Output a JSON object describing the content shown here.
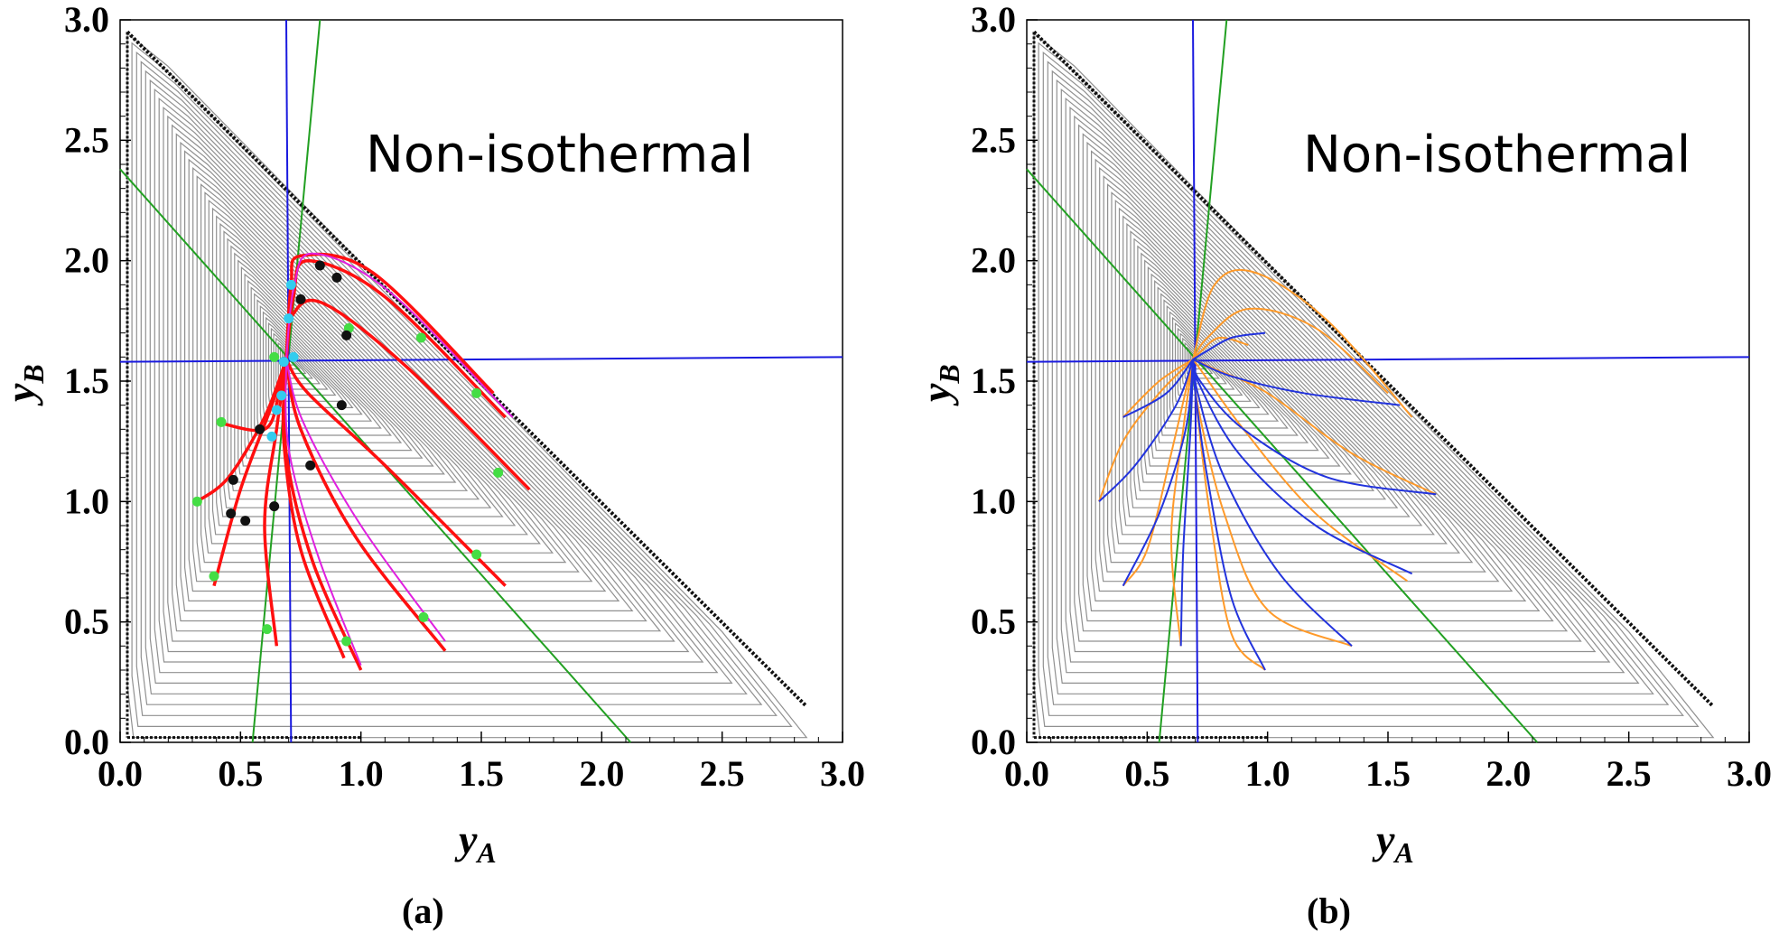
{
  "figure": {
    "panels": [
      "a",
      "b"
    ]
  },
  "chart_data": [
    {
      "type": "line",
      "panel_label": "(a)",
      "panel_label_parts": [
        "(",
        "a",
        ")"
      ],
      "annotation": "Non-isothermal",
      "xlabel": "y",
      "xlabel_sub": "A",
      "ylabel": "y",
      "ylabel_sub": "B",
      "xlim": [
        0,
        3
      ],
      "ylim": [
        0,
        3
      ],
      "xticks": [
        "0.0",
        "0.5",
        "1.0",
        "1.5",
        "2.0",
        "2.5",
        "3.0"
      ],
      "yticks": [
        "0.0",
        "0.5",
        "1.0",
        "1.5",
        "2.0",
        "2.5",
        "3.0"
      ],
      "contour_color": "#909090",
      "nullcline_vertical": {
        "color": "#1a1adf",
        "points": [
          [
            0.69,
            3.0
          ],
          [
            0.71,
            0.0
          ]
        ]
      },
      "nullcline_horizontal": {
        "color": "#1a1adf",
        "points": [
          [
            0.0,
            1.58
          ],
          [
            3.0,
            1.6
          ]
        ]
      },
      "green_steep": {
        "color": "#22a022",
        "points": [
          [
            0.55,
            0.0
          ],
          [
            0.83,
            3.0
          ]
        ]
      },
      "green_diagonal": {
        "color": "#22a022",
        "points": [
          [
            0.0,
            2.38
          ],
          [
            2.12,
            0.0
          ]
        ]
      },
      "fixed_point": [
        0.69,
        1.59
      ],
      "series": [
        {
          "name": "red trajectories",
          "color": "#ff0f0f",
          "trajectories": [
            [
              [
                1.6,
                1.35
              ],
              [
                1.1,
                1.85
              ],
              [
                0.78,
                2.0
              ],
              [
                0.72,
                1.85
              ],
              [
                0.69,
                1.59
              ]
            ],
            [
              [
                1.55,
                1.45
              ],
              [
                1.05,
                1.95
              ],
              [
                0.75,
                2.02
              ],
              [
                0.71,
                1.9
              ],
              [
                0.69,
                1.59
              ]
            ],
            [
              [
                1.7,
                1.05
              ],
              [
                1.2,
                1.55
              ],
              [
                0.85,
                1.82
              ],
              [
                0.72,
                1.78
              ],
              [
                0.69,
                1.59
              ]
            ],
            [
              [
                1.6,
                0.65
              ],
              [
                1.1,
                1.15
              ],
              [
                0.78,
                1.45
              ],
              [
                0.69,
                1.59
              ]
            ],
            [
              [
                1.35,
                0.38
              ],
              [
                0.98,
                0.85
              ],
              [
                0.75,
                1.3
              ],
              [
                0.69,
                1.59
              ]
            ],
            [
              [
                1.0,
                0.3
              ],
              [
                0.8,
                0.75
              ],
              [
                0.69,
                1.2
              ],
              [
                0.69,
                1.59
              ]
            ],
            [
              [
                0.93,
                0.35
              ],
              [
                0.75,
                0.8
              ],
              [
                0.68,
                1.25
              ],
              [
                0.69,
                1.59
              ]
            ],
            [
              [
                0.65,
                0.4
              ],
              [
                0.6,
                0.9
              ],
              [
                0.65,
                1.3
              ],
              [
                0.69,
                1.59
              ]
            ],
            [
              [
                0.39,
                0.65
              ],
              [
                0.5,
                1.05
              ],
              [
                0.63,
                1.4
              ],
              [
                0.69,
                1.59
              ]
            ],
            [
              [
                0.32,
                1.0
              ],
              [
                0.45,
                1.1
              ],
              [
                0.6,
                1.35
              ],
              [
                0.69,
                1.59
              ]
            ],
            [
              [
                0.4,
                1.33
              ],
              [
                0.6,
                1.3
              ],
              [
                0.66,
                1.45
              ],
              [
                0.69,
                1.59
              ]
            ]
          ]
        },
        {
          "name": "magenta trajectories",
          "color": "#e020e0",
          "trajectories": [
            [
              [
                1.63,
                1.35
              ],
              [
                1.12,
                1.87
              ],
              [
                0.8,
                2.03
              ],
              [
                0.72,
                1.88
              ],
              [
                0.69,
                1.59
              ]
            ],
            [
              [
                1.0,
                0.32
              ],
              [
                0.82,
                0.78
              ],
              [
                0.7,
                1.22
              ],
              [
                0.69,
                1.59
              ]
            ],
            [
              [
                1.35,
                0.42
              ],
              [
                1.0,
                0.9
              ],
              [
                0.76,
                1.33
              ],
              [
                0.69,
                1.59
              ]
            ]
          ]
        },
        {
          "name": "green markers",
          "color": "#44dd44",
          "points": [
            [
              1.48,
              1.45
            ],
            [
              1.57,
              1.12
            ],
            [
              1.48,
              0.78
            ],
            [
              1.26,
              0.52
            ],
            [
              0.94,
              0.42
            ],
            [
              0.61,
              0.47
            ],
            [
              0.39,
              0.69
            ],
            [
              0.32,
              1.0
            ],
            [
              0.42,
              1.33
            ],
            [
              0.64,
              1.6
            ],
            [
              1.25,
              1.68
            ],
            [
              0.95,
              1.72
            ]
          ]
        },
        {
          "name": "black markers",
          "color": "#111111",
          "points": [
            [
              0.83,
              1.98
            ],
            [
              0.9,
              1.93
            ],
            [
              0.75,
              1.84
            ],
            [
              0.94,
              1.69
            ],
            [
              0.92,
              1.4
            ],
            [
              0.79,
              1.15
            ],
            [
              0.58,
              1.3
            ],
            [
              0.47,
              1.09
            ],
            [
              0.46,
              0.95
            ],
            [
              0.52,
              0.92
            ],
            [
              0.64,
              0.98
            ],
            [
              0.68,
              1.58
            ]
          ]
        },
        {
          "name": "cyan markers",
          "color": "#33ccee",
          "points": [
            [
              0.71,
              1.9
            ],
            [
              0.7,
              1.76
            ],
            [
              0.68,
              1.58
            ],
            [
              0.67,
              1.44
            ],
            [
              0.65,
              1.38
            ],
            [
              0.63,
              1.27
            ],
            [
              0.72,
              1.6
            ]
          ]
        }
      ]
    },
    {
      "type": "line",
      "panel_label": "(b)",
      "panel_label_parts": [
        "(",
        "b",
        ")"
      ],
      "annotation": "Non-isothermal",
      "xlabel": "y",
      "xlabel_sub": "A",
      "ylabel": "y",
      "ylabel_sub": "B",
      "xlim": [
        0,
        3
      ],
      "ylim": [
        0,
        3
      ],
      "xticks": [
        "0.0",
        "0.5",
        "1.0",
        "1.5",
        "2.0",
        "2.5",
        "3.0"
      ],
      "yticks": [
        "0.0",
        "0.5",
        "1.0",
        "1.5",
        "2.0",
        "2.5",
        "3.0"
      ],
      "contour_color": "#909090",
      "nullcline_vertical": {
        "color": "#1a1adf",
        "points": [
          [
            0.69,
            3.0
          ],
          [
            0.71,
            0.0
          ]
        ]
      },
      "nullcline_horizontal": {
        "color": "#1a1adf",
        "points": [
          [
            0.0,
            1.58
          ],
          [
            3.0,
            1.6
          ]
        ]
      },
      "green_steep": {
        "color": "#22a022",
        "points": [
          [
            0.55,
            0.0
          ],
          [
            0.83,
            3.0
          ]
        ]
      },
      "green_diagonal": {
        "color": "#22a022",
        "points": [
          [
            0.0,
            2.38
          ],
          [
            2.12,
            0.0
          ]
        ]
      },
      "fixed_point": [
        0.69,
        1.59
      ],
      "series": [
        {
          "name": "orange trajectories",
          "color": "#ff9a2a",
          "trajectories": [
            [
              [
                1.6,
                1.35
              ],
              [
                1.25,
                1.75
              ],
              [
                0.95,
                1.95
              ],
              [
                0.78,
                1.9
              ],
              [
                0.69,
                1.59
              ]
            ],
            [
              [
                1.5,
                1.45
              ],
              [
                1.2,
                1.72
              ],
              [
                0.92,
                1.8
              ],
              [
                0.75,
                1.68
              ],
              [
                0.69,
                1.59
              ]
            ],
            [
              [
                0.92,
                1.65
              ],
              [
                0.8,
                1.68
              ],
              [
                0.72,
                1.62
              ],
              [
                0.69,
                1.59
              ]
            ],
            [
              [
                1.7,
                1.03
              ],
              [
                1.35,
                1.2
              ],
              [
                1.0,
                1.45
              ],
              [
                0.78,
                1.55
              ],
              [
                0.69,
                1.59
              ]
            ],
            [
              [
                1.58,
                0.67
              ],
              [
                1.2,
                0.95
              ],
              [
                0.9,
                1.3
              ],
              [
                0.72,
                1.55
              ],
              [
                0.69,
                1.59
              ]
            ],
            [
              [
                1.35,
                0.4
              ],
              [
                1.0,
                0.55
              ],
              [
                0.82,
                0.95
              ],
              [
                0.71,
                1.4
              ],
              [
                0.69,
                1.59
              ]
            ],
            [
              [
                0.99,
                0.3
              ],
              [
                0.85,
                0.45
              ],
              [
                0.76,
                0.95
              ],
              [
                0.7,
                1.45
              ],
              [
                0.69,
                1.59
              ]
            ],
            [
              [
                0.64,
                0.4
              ],
              [
                0.6,
                0.85
              ],
              [
                0.65,
                1.3
              ],
              [
                0.69,
                1.59
              ]
            ],
            [
              [
                0.4,
                0.65
              ],
              [
                0.5,
                0.8
              ],
              [
                0.6,
                1.2
              ],
              [
                0.69,
                1.59
              ]
            ],
            [
              [
                0.3,
                1.0
              ],
              [
                0.4,
                1.25
              ],
              [
                0.55,
                1.45
              ],
              [
                0.69,
                1.59
              ]
            ],
            [
              [
                0.4,
                1.35
              ],
              [
                0.55,
                1.5
              ],
              [
                0.69,
                1.59
              ]
            ]
          ]
        },
        {
          "name": "blue trajectories",
          "color": "#2233dd",
          "trajectories": [
            [
              [
                0.99,
                1.7
              ],
              [
                0.85,
                1.68
              ],
              [
                0.74,
                1.62
              ],
              [
                0.69,
                1.59
              ]
            ],
            [
              [
                1.55,
                1.4
              ],
              [
                1.15,
                1.45
              ],
              [
                0.85,
                1.52
              ],
              [
                0.69,
                1.59
              ]
            ],
            [
              [
                1.7,
                1.03
              ],
              [
                1.25,
                1.1
              ],
              [
                0.9,
                1.3
              ],
              [
                0.72,
                1.5
              ],
              [
                0.69,
                1.59
              ]
            ],
            [
              [
                1.6,
                0.7
              ],
              [
                1.2,
                0.9
              ],
              [
                0.88,
                1.2
              ],
              [
                0.71,
                1.5
              ],
              [
                0.69,
                1.59
              ]
            ],
            [
              [
                1.35,
                0.4
              ],
              [
                1.05,
                0.7
              ],
              [
                0.82,
                1.1
              ],
              [
                0.71,
                1.45
              ],
              [
                0.69,
                1.59
              ]
            ],
            [
              [
                0.99,
                0.3
              ],
              [
                0.85,
                0.6
              ],
              [
                0.75,
                1.1
              ],
              [
                0.7,
                1.45
              ],
              [
                0.69,
                1.59
              ]
            ],
            [
              [
                0.64,
                0.4
              ],
              [
                0.65,
                0.8
              ],
              [
                0.68,
                1.3
              ],
              [
                0.69,
                1.59
              ]
            ],
            [
              [
                0.4,
                0.65
              ],
              [
                0.55,
                0.95
              ],
              [
                0.66,
                1.3
              ],
              [
                0.69,
                1.59
              ]
            ],
            [
              [
                0.3,
                1.0
              ],
              [
                0.45,
                1.15
              ],
              [
                0.62,
                1.4
              ],
              [
                0.69,
                1.59
              ]
            ],
            [
              [
                0.4,
                1.35
              ],
              [
                0.58,
                1.45
              ],
              [
                0.69,
                1.59
              ]
            ]
          ]
        }
      ]
    }
  ]
}
